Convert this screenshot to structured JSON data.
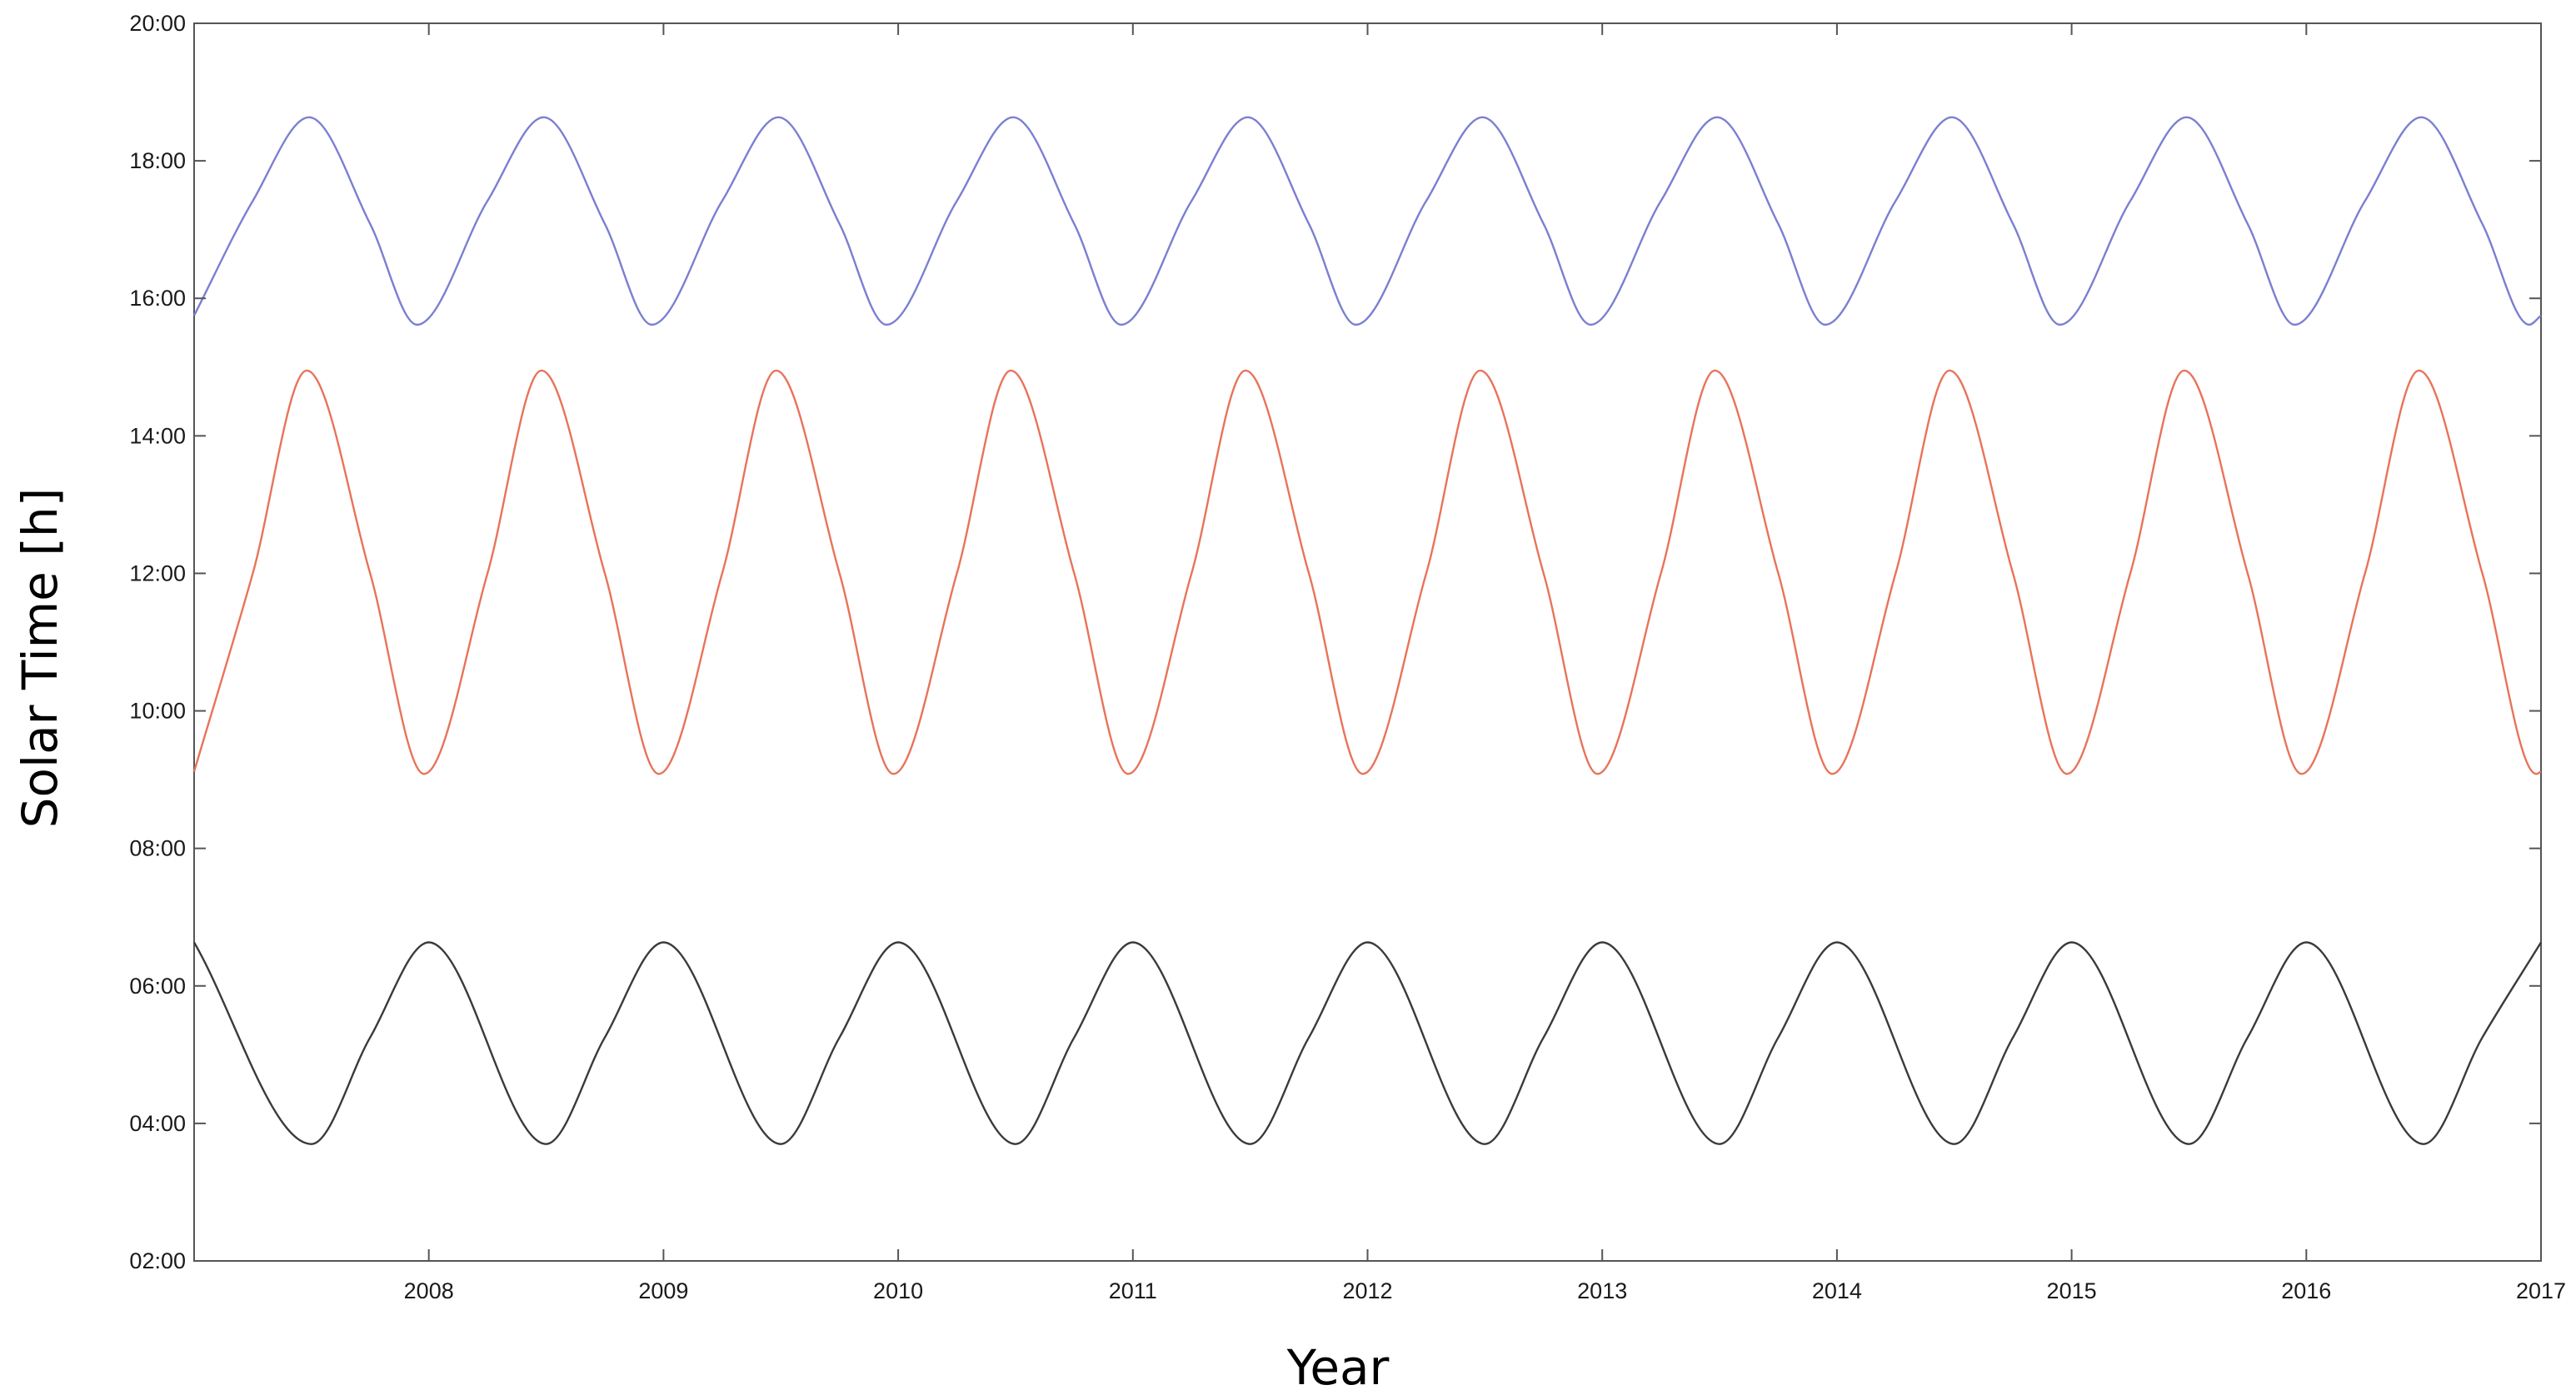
{
  "chart_data": {
    "type": "line",
    "title": "",
    "xlabel": "Year",
    "ylabel": "Solar Time [h]",
    "xlim": [
      2007.0,
      2017.0
    ],
    "ylim": [
      "02:00",
      "20:00"
    ],
    "x_ticks": [
      "2008",
      "2009",
      "2010",
      "2011",
      "2012",
      "2013",
      "2014",
      "2015",
      "2016",
      "2017"
    ],
    "y_ticks": [
      "02:00",
      "04:00",
      "06:00",
      "08:00",
      "10:00",
      "12:00",
      "14:00",
      "16:00",
      "18:00",
      "20:00"
    ],
    "grid": false,
    "legend": "none",
    "series": [
      {
        "color": "#7b7fd0",
        "x": [
          2007.0,
          2007.25,
          2007.49,
          2007.75,
          2007.95,
          2008.25,
          2008.49,
          2008.75,
          2008.95,
          2009.25,
          2009.49,
          2009.75,
          2009.95,
          2010.25,
          2010.49,
          2010.75,
          2010.95,
          2011.25,
          2011.49,
          2011.75,
          2011.95,
          2012.25,
          2012.49,
          2012.75,
          2012.95,
          2013.25,
          2013.49,
          2013.75,
          2013.95,
          2014.25,
          2014.49,
          2014.75,
          2014.95,
          2015.25,
          2015.49,
          2015.75,
          2015.95,
          2016.25,
          2016.49,
          2016.75,
          2016.95,
          2017.0
        ],
        "y": [
          "15:45",
          "17:25",
          "18:38",
          "17:05",
          "15:37",
          "17:25",
          "18:38",
          "17:05",
          "15:37",
          "17:25",
          "18:38",
          "17:05",
          "15:37",
          "17:25",
          "18:38",
          "17:05",
          "15:37",
          "17:25",
          "18:38",
          "17:05",
          "15:37",
          "17:25",
          "18:38",
          "17:05",
          "15:37",
          "17:25",
          "18:38",
          "17:05",
          "15:37",
          "17:25",
          "18:38",
          "17:05",
          "15:37",
          "17:25",
          "18:38",
          "17:05",
          "15:37",
          "17:25",
          "18:38",
          "17:05",
          "15:37",
          "15:45"
        ]
      },
      {
        "color": "#e8735a",
        "x": [
          2007.0,
          2007.25,
          2007.48,
          2007.75,
          2007.98,
          2008.25,
          2008.48,
          2008.75,
          2008.98,
          2009.25,
          2009.48,
          2009.75,
          2009.98,
          2010.25,
          2010.48,
          2010.75,
          2010.98,
          2011.25,
          2011.48,
          2011.75,
          2011.98,
          2012.25,
          2012.48,
          2012.75,
          2012.98,
          2013.25,
          2013.48,
          2013.75,
          2013.98,
          2014.25,
          2014.48,
          2014.75,
          2014.98,
          2015.25,
          2015.48,
          2015.75,
          2015.98,
          2016.25,
          2016.48,
          2016.75,
          2016.98,
          2017.0
        ],
        "y": [
          "09:07",
          "12:00",
          "14:57",
          "12:00",
          "09:05",
          "12:00",
          "14:57",
          "12:00",
          "09:05",
          "12:00",
          "14:57",
          "12:00",
          "09:05",
          "12:00",
          "14:57",
          "12:00",
          "09:05",
          "12:00",
          "14:57",
          "12:00",
          "09:05",
          "12:00",
          "14:57",
          "12:00",
          "09:05",
          "12:00",
          "14:57",
          "12:00",
          "09:05",
          "12:00",
          "14:57",
          "12:00",
          "09:05",
          "12:00",
          "14:57",
          "12:00",
          "09:05",
          "12:00",
          "14:57",
          "12:00",
          "09:05",
          "09:07"
        ]
      },
      {
        "color": "#3a3a3a",
        "x": [
          2007.0,
          2007.5,
          2007.75,
          2008.0,
          2008.5,
          2008.75,
          2009.0,
          2009.5,
          2009.75,
          2010.0,
          2010.5,
          2010.75,
          2011.0,
          2011.5,
          2011.75,
          2012.0,
          2012.5,
          2012.75,
          2013.0,
          2013.5,
          2013.75,
          2014.0,
          2014.5,
          2014.75,
          2015.0,
          2015.5,
          2015.75,
          2016.0,
          2016.5,
          2016.75,
          2017.0
        ],
        "y": [
          "06:38",
          "03:42",
          "05:15",
          "06:38",
          "03:42",
          "05:15",
          "06:38",
          "03:42",
          "05:15",
          "06:38",
          "03:42",
          "05:15",
          "06:38",
          "03:42",
          "05:15",
          "06:38",
          "03:42",
          "05:15",
          "06:38",
          "03:42",
          "05:15",
          "06:38",
          "03:42",
          "05:15",
          "06:38",
          "03:42",
          "05:15",
          "06:38",
          "03:42",
          "05:15",
          "06:38"
        ]
      }
    ]
  }
}
